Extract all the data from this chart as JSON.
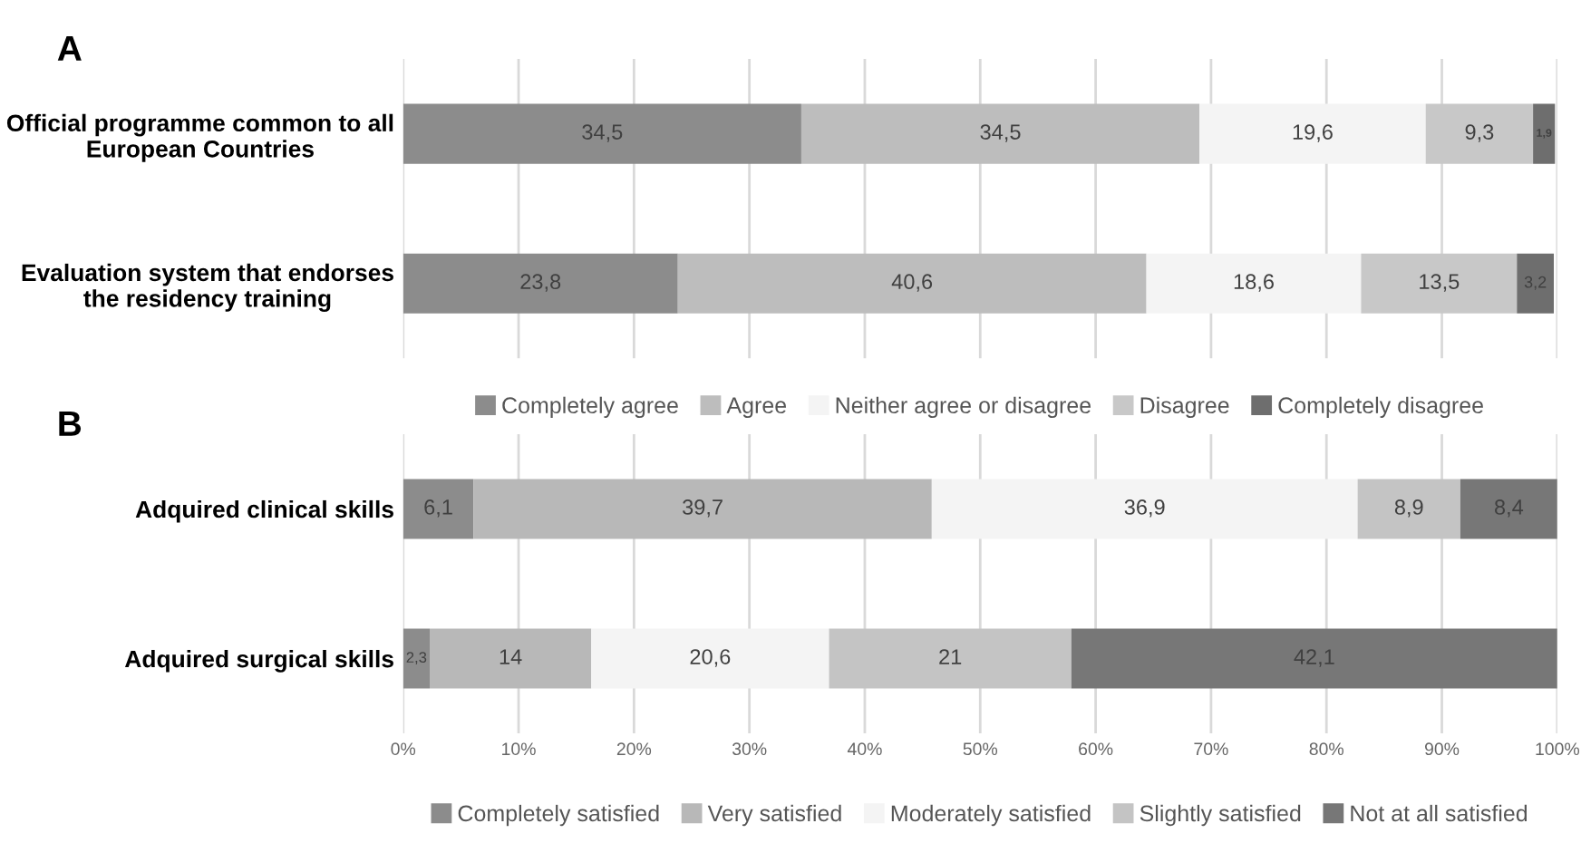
{
  "chart_data": [
    {
      "type": "bar",
      "title": "A",
      "orientation": "horizontal",
      "stacked": true,
      "legend": "bottom",
      "grid": "x",
      "tick_labels": "y",
      "xlim": [
        0,
        100
      ],
      "xticks": [
        {
          "value": 0,
          "label": null
        },
        {
          "value": 10,
          "label": null
        },
        {
          "value": 20,
          "label": null
        },
        {
          "value": 30,
          "label": null
        },
        {
          "value": 40,
          "label": null
        },
        {
          "value": 50,
          "label": null
        },
        {
          "value": 60,
          "label": null
        },
        {
          "value": 70,
          "label": null
        },
        {
          "value": 80,
          "label": null
        },
        {
          "value": 90,
          "label": null
        },
        {
          "value": 100,
          "label": null
        }
      ],
      "categories": [
        "Official programme common to all European Countries",
        "Evaluation system that endorses the residency training"
      ],
      "series": [
        {
          "name": "Completely agree",
          "color": "#8c8c8c",
          "values": [
            34.5,
            23.8
          ],
          "value_labels": [
            "34,5",
            "23,8"
          ]
        },
        {
          "name": "Agree",
          "color": "#bdbdbd",
          "values": [
            34.5,
            40.6
          ],
          "value_labels": [
            "34,5",
            "40,6"
          ]
        },
        {
          "name": "Neither agree or disagree",
          "color": "#f4f4f4",
          "values": [
            19.6,
            18.6
          ],
          "value_labels": [
            "19,6",
            "18,6"
          ]
        },
        {
          "name": "Disagree",
          "color": "#c8c8c8",
          "values": [
            9.3,
            13.5
          ],
          "value_labels": [
            "9,3",
            "13,5"
          ]
        },
        {
          "name": "Completely disagree",
          "color": "#6e6e6e",
          "values": [
            1.9,
            3.2
          ],
          "value_labels": [
            "1,9",
            "3,2"
          ]
        }
      ]
    },
    {
      "type": "bar",
      "title": "B",
      "orientation": "horizontal",
      "stacked": true,
      "legend": "bottom",
      "grid": "x",
      "xlim": [
        0,
        100
      ],
      "xticks": [
        {
          "value": 0,
          "label": "0%"
        },
        {
          "value": 10,
          "label": "10%"
        },
        {
          "value": 20,
          "label": "20%"
        },
        {
          "value": 30,
          "label": "30%"
        },
        {
          "value": 40,
          "label": "40%"
        },
        {
          "value": 50,
          "label": "50%"
        },
        {
          "value": 60,
          "label": "60%"
        },
        {
          "value": 70,
          "label": "70%"
        },
        {
          "value": 80,
          "label": "80%"
        },
        {
          "value": 90,
          "label": "90%"
        },
        {
          "value": 100,
          "label": "100%"
        }
      ],
      "categories": [
        "Adquired clinical skills",
        "Adquired surgical skills"
      ],
      "series": [
        {
          "name": "Completely satisfied",
          "color": "#8c8c8c",
          "values": [
            6.1,
            2.3
          ],
          "value_labels": [
            "6,1",
            "2,3"
          ]
        },
        {
          "name": "Very satisfied",
          "color": "#b8b8b8",
          "values": [
            39.7,
            14
          ],
          "value_labels": [
            "39,7",
            "14"
          ]
        },
        {
          "name": "Moderately satisfied",
          "color": "#f4f4f4",
          "values": [
            36.9,
            20.6
          ],
          "value_labels": [
            "36,9",
            "20,6"
          ]
        },
        {
          "name": "Slightly satisfied",
          "color": "#c4c4c4",
          "values": [
            8.9,
            21
          ],
          "value_labels": [
            "8,9",
            "21"
          ]
        },
        {
          "name": "Not at all satisfied",
          "color": "#777777",
          "values": [
            8.4,
            42.1
          ],
          "value_labels": [
            "8,4",
            "42,1"
          ]
        }
      ]
    }
  ]
}
